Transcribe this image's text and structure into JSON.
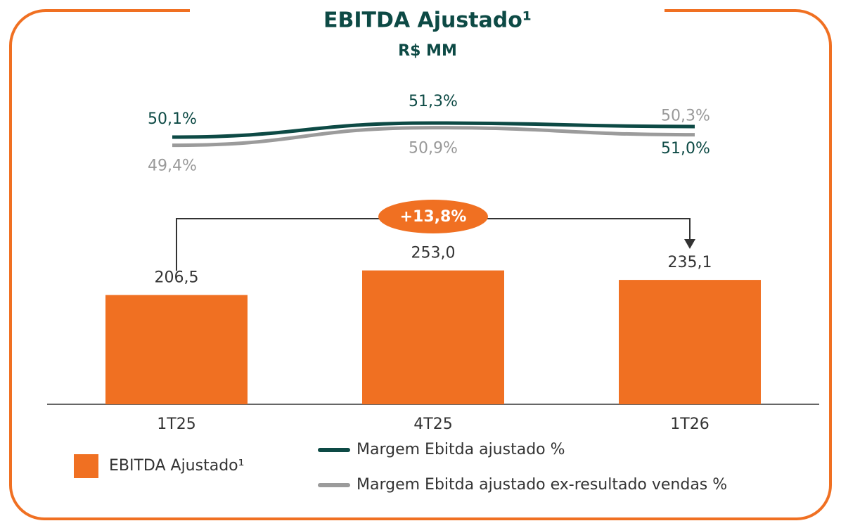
{
  "chart_data": {
    "type": "bar",
    "title": "EBITDA Ajustado¹",
    "subtitle": "R$ MM",
    "categories": [
      "1T25",
      "4T25",
      "1T26"
    ],
    "ylim": [
      0,
      400
    ],
    "y2lim": [
      48,
      53
    ],
    "series": [
      {
        "name": "EBITDA Ajustado¹",
        "type": "bar",
        "color": "#f07022",
        "values": [
          206.5,
          253.0,
          235.1
        ],
        "value_labels": [
          "206,5",
          "253,0",
          "235,1"
        ]
      },
      {
        "name": "Margem Ebitda ajustado %",
        "type": "line",
        "axis": "y2",
        "color": "#0d4a45",
        "values": [
          50.1,
          51.3,
          51.0
        ],
        "value_labels": [
          "50,1%",
          "51,3%",
          "51,0%"
        ]
      },
      {
        "name": "Margem Ebitda ajustado ex-resultado vendas %",
        "type": "line",
        "axis": "y2",
        "color": "#9b9b9b",
        "values": [
          49.4,
          50.9,
          50.3
        ],
        "value_labels": [
          "49,4%",
          "50,9%",
          "50,3%"
        ]
      }
    ],
    "annotation": "+13,8%"
  }
}
